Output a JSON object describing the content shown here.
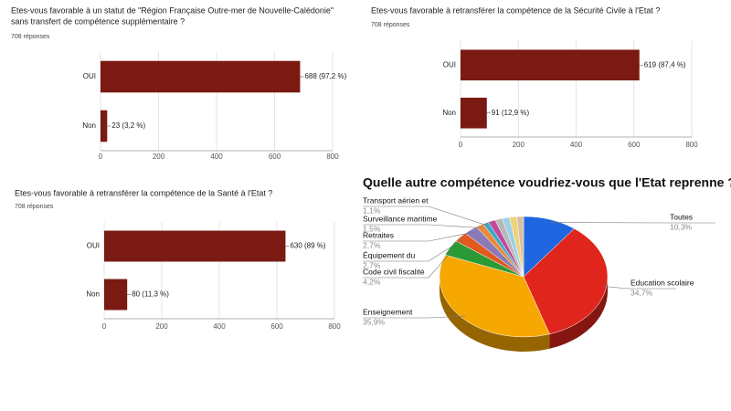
{
  "chart_data": [
    {
      "type": "hbar",
      "title": [
        "Etes-vous favorable à un statut de \"Région Française Outre-mer de Nouvelle-Calédonie\"",
        "sans transfert de compétence supplémentaire ?"
      ],
      "subtitle": "708 réponses",
      "categories": [
        "OUI",
        "Non"
      ],
      "values": [
        688,
        23
      ],
      "value_labels": [
        "688 (97,2 %)",
        "23 (3,2 %)"
      ],
      "color": "#7a1a12",
      "xlim": [
        0,
        800
      ],
      "xticks": [
        0,
        200,
        400,
        600,
        800
      ],
      "grid": true
    },
    {
      "type": "hbar",
      "title": [
        "Etes-vous favorable à retransférer la compétence de la Sécurité Civile à l'Etat ?"
      ],
      "subtitle": "708 réponses",
      "categories": [
        "OUI",
        "Non"
      ],
      "values": [
        619,
        91
      ],
      "value_labels": [
        "619 (87,4 %)",
        "91 (12,9 %)"
      ],
      "color": "#7a1a12",
      "xlim": [
        0,
        800
      ],
      "xticks": [
        0,
        200,
        400,
        600,
        800
      ],
      "grid": true
    },
    {
      "type": "hbar",
      "title": [
        "Etes-vous favorable à retransférer la compétence de la Santé à l'Etat ?"
      ],
      "subtitle": "708 réponses",
      "categories": [
        "OUI",
        "Non"
      ],
      "values": [
        630,
        80
      ],
      "value_labels": [
        "630 (89 %)",
        "80 (11,3 %)"
      ],
      "color": "#7a1a12",
      "xlim": [
        0,
        800
      ],
      "xticks": [
        0,
        200,
        400,
        600,
        800
      ],
      "grid": true
    },
    {
      "type": "pie",
      "title": "Quelle autre compétence voudriez-vous que l'Etat reprenne ?",
      "categories": [
        "Toutes",
        "Education scolaire",
        "Enseignement",
        "Code civil fiscalité",
        "Équipement du",
        "Retraites",
        "Surveillance maritime",
        "Transport aérien et",
        null,
        null,
        null,
        null,
        null
      ],
      "values": [
        10.3,
        34.7,
        35.9,
        4.2,
        2.7,
        2.7,
        1.5,
        1.1,
        1.4,
        1.4,
        1.4,
        1.4,
        1.3
      ],
      "value_labels": [
        "10,3%",
        "34,7%",
        "35,9%",
        "4,2%",
        "2,7%",
        "2,7%",
        "1,5%",
        "1,1%",
        null,
        null,
        null,
        null,
        null
      ],
      "colors": [
        "#1f66e0",
        "#e0251c",
        "#f7a800",
        "#2a9a35",
        "#e05a20",
        "#8a7ab8",
        "#e88a3a",
        "#3aa8c8",
        "#c04a9a",
        "#b8b8b8",
        "#9ad0e8",
        "#f0d27a",
        "#d8c0a0"
      ]
    }
  ]
}
